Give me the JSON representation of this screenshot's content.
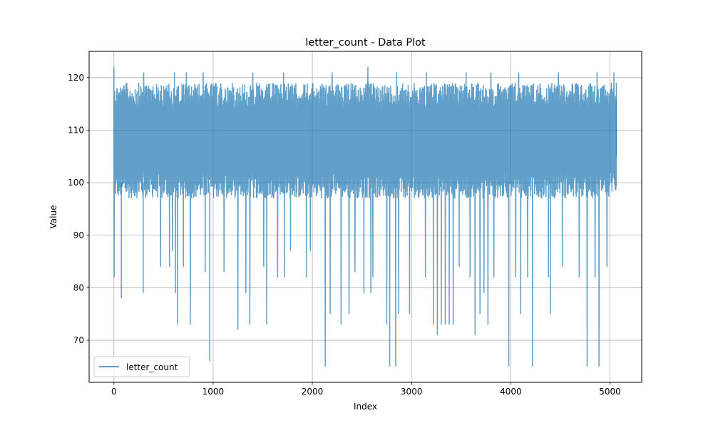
{
  "chart_data": {
    "type": "line",
    "title": "letter_count - Data Plot",
    "xlabel": "Index",
    "ylabel": "Value",
    "xlim": [
      -250,
      5320
    ],
    "ylim": [
      62,
      125
    ],
    "x_ticks": [
      0,
      1000,
      2000,
      3000,
      4000,
      5000
    ],
    "y_ticks": [
      70,
      80,
      90,
      100,
      110,
      120
    ],
    "x_tick_labels": [
      "0",
      "1000",
      "2000",
      "3000",
      "4000",
      "5000"
    ],
    "y_tick_labels": [
      "70",
      "80",
      "90",
      "100",
      "110",
      "120"
    ],
    "grid": true,
    "legend_position": "lower-left",
    "series": [
      {
        "name": "letter_count",
        "color": "#1f77b4",
        "opacity": 0.7,
        "n_points": 5066,
        "band_low": 97,
        "band_high": 119,
        "band_peaks": [
          [
            0,
            122
          ],
          [
            300,
            121
          ],
          [
            610,
            121
          ],
          [
            730,
            121
          ],
          [
            900,
            121
          ],
          [
            1250,
            121
          ],
          [
            1400,
            121
          ],
          [
            1710,
            121
          ],
          [
            1940,
            122
          ],
          [
            2200,
            121
          ],
          [
            2560,
            122
          ],
          [
            2850,
            121
          ],
          [
            3150,
            121
          ],
          [
            3550,
            121
          ],
          [
            3800,
            121
          ],
          [
            4080,
            121
          ],
          [
            4480,
            121
          ],
          [
            4690,
            121
          ],
          [
            4870,
            121
          ],
          [
            5040,
            121
          ]
        ],
        "low_spikes": [
          [
            2,
            82
          ],
          [
            75,
            78
          ],
          [
            295,
            79
          ],
          [
            470,
            84
          ],
          [
            560,
            84
          ],
          [
            590,
            87
          ],
          [
            620,
            79
          ],
          [
            640,
            73
          ],
          [
            700,
            84
          ],
          [
            770,
            73
          ],
          [
            920,
            83
          ],
          [
            965,
            66
          ],
          [
            1110,
            83
          ],
          [
            1250,
            72
          ],
          [
            1330,
            79
          ],
          [
            1370,
            73
          ],
          [
            1510,
            84
          ],
          [
            1540,
            73
          ],
          [
            1650,
            82
          ],
          [
            1720,
            82
          ],
          [
            1780,
            87
          ],
          [
            1940,
            82
          ],
          [
            1980,
            87
          ],
          [
            2130,
            65
          ],
          [
            2180,
            75
          ],
          [
            2290,
            73
          ],
          [
            2370,
            75
          ],
          [
            2430,
            83
          ],
          [
            2520,
            79
          ],
          [
            2590,
            79
          ],
          [
            2610,
            82
          ],
          [
            2750,
            73
          ],
          [
            2780,
            65
          ],
          [
            2840,
            65
          ],
          [
            2870,
            75
          ],
          [
            2980,
            75
          ],
          [
            3140,
            82
          ],
          [
            3220,
            73
          ],
          [
            3260,
            71
          ],
          [
            3300,
            73
          ],
          [
            3340,
            73
          ],
          [
            3380,
            73
          ],
          [
            3420,
            73
          ],
          [
            3480,
            84
          ],
          [
            3590,
            82
          ],
          [
            3640,
            71
          ],
          [
            3690,
            75
          ],
          [
            3730,
            79
          ],
          [
            3770,
            73
          ],
          [
            3830,
            82
          ],
          [
            3980,
            65
          ],
          [
            4050,
            82
          ],
          [
            4100,
            75
          ],
          [
            4170,
            82
          ],
          [
            4220,
            65
          ],
          [
            4380,
            82
          ],
          [
            4400,
            75
          ],
          [
            4520,
            84
          ],
          [
            4690,
            82
          ],
          [
            4770,
            65
          ],
          [
            4850,
            82
          ],
          [
            4890,
            65
          ],
          [
            4970,
            84
          ]
        ],
        "last_value": 105
      }
    ]
  }
}
